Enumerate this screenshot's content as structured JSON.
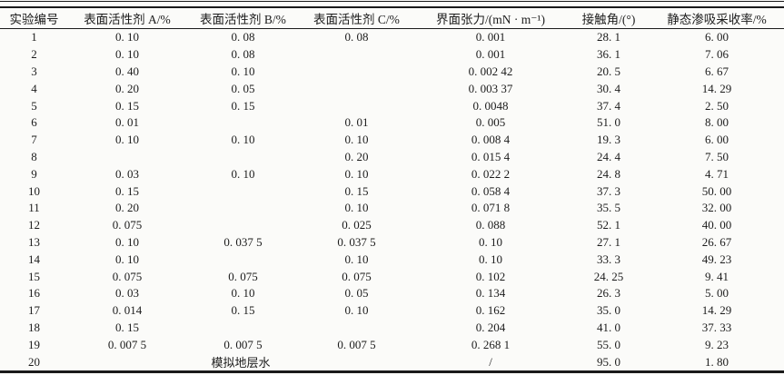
{
  "page": {
    "background_color": "#fbfbf9",
    "ink_color": "#1c1c1c",
    "rule_color": "#1a1a1a"
  },
  "table": {
    "columns": [
      {
        "id": "experiment-no",
        "label": "实验编号"
      },
      {
        "id": "surfactant-a",
        "label": "表面活性剂 A/%"
      },
      {
        "id": "surfactant-b",
        "label": "表面活性剂 B/%"
      },
      {
        "id": "surfactant-c",
        "label": "表面活性剂 C/%"
      },
      {
        "id": "interfacial-tension",
        "label": "界面张力/(mN · m⁻¹)"
      },
      {
        "id": "contact-angle",
        "label": "接触角/(°)"
      },
      {
        "id": "static-imbibition-recovery",
        "label": "静态渗吸采收率/%"
      }
    ],
    "rows": [
      {
        "cells": [
          "1",
          "0. 10",
          "0. 08",
          "0. 08",
          "0. 001",
          "28. 1",
          "6. 00"
        ]
      },
      {
        "cells": [
          "2",
          "0. 10",
          "0. 08",
          "",
          "0. 001",
          "36. 1",
          "7. 06"
        ]
      },
      {
        "cells": [
          "3",
          "0. 40",
          "0. 10",
          "",
          "0. 002 42",
          "20. 5",
          "6. 67"
        ]
      },
      {
        "cells": [
          "4",
          "0. 20",
          "0. 05",
          "",
          "0. 003 37",
          "30. 4",
          "14. 29"
        ]
      },
      {
        "cells": [
          "5",
          "0. 15",
          "0. 15",
          "",
          "0. 0048",
          "37. 4",
          "2. 50"
        ]
      },
      {
        "cells": [
          "6",
          "0. 01",
          "",
          "0. 01",
          "0. 005",
          "51. 0",
          "8. 00"
        ]
      },
      {
        "cells": [
          "7",
          "0. 10",
          "0. 10",
          "0. 10",
          "0. 008 4",
          "19. 3",
          "6. 00"
        ]
      },
      {
        "cells": [
          "8",
          "",
          "",
          "0. 20",
          "0. 015 4",
          "24. 4",
          "7. 50"
        ]
      },
      {
        "cells": [
          "9",
          "0. 03",
          "0. 10",
          "0. 10",
          "0. 022 2",
          "24. 8",
          "4. 71"
        ]
      },
      {
        "cells": [
          "10",
          "0. 15",
          "",
          "0. 15",
          "0. 058 4",
          "37. 3",
          "50. 00"
        ]
      },
      {
        "cells": [
          "11",
          "0. 20",
          "",
          "0. 10",
          "0. 071 8",
          "35. 5",
          "32. 00"
        ]
      },
      {
        "cells": [
          "12",
          "0. 075",
          "",
          "0. 025",
          "0. 088",
          "52. 1",
          "40. 00"
        ]
      },
      {
        "cells": [
          "13",
          "0. 10",
          "0. 037 5",
          "0. 037 5",
          "0. 10",
          "27. 1",
          "26. 67"
        ]
      },
      {
        "cells": [
          "14",
          "0. 10",
          "",
          "0. 10",
          "0. 10",
          "33. 3",
          "49. 23"
        ]
      },
      {
        "cells": [
          "15",
          "0. 075",
          "0. 075",
          "0. 075",
          "0. 102",
          "24. 25",
          "9. 41"
        ]
      },
      {
        "cells": [
          "16",
          "0. 03",
          "0. 10",
          "0. 05",
          "0. 134",
          "26. 3",
          "5. 00"
        ]
      },
      {
        "cells": [
          "17",
          "0. 014",
          "0. 15",
          "0. 10",
          "0. 162",
          "35. 0",
          "14. 29"
        ]
      },
      {
        "cells": [
          "18",
          "0. 15",
          "",
          "",
          "0. 204",
          "41. 0",
          "37. 33"
        ]
      },
      {
        "cells": [
          "19",
          "0. 007 5",
          "0. 007 5",
          "0. 007 5",
          "0. 268 1",
          "55. 0",
          "9. 23"
        ]
      },
      {
        "cells": [
          "20",
          "模拟地层水",
          "/",
          "95. 0",
          "1. 80"
        ],
        "merge_abc": true
      }
    ]
  }
}
